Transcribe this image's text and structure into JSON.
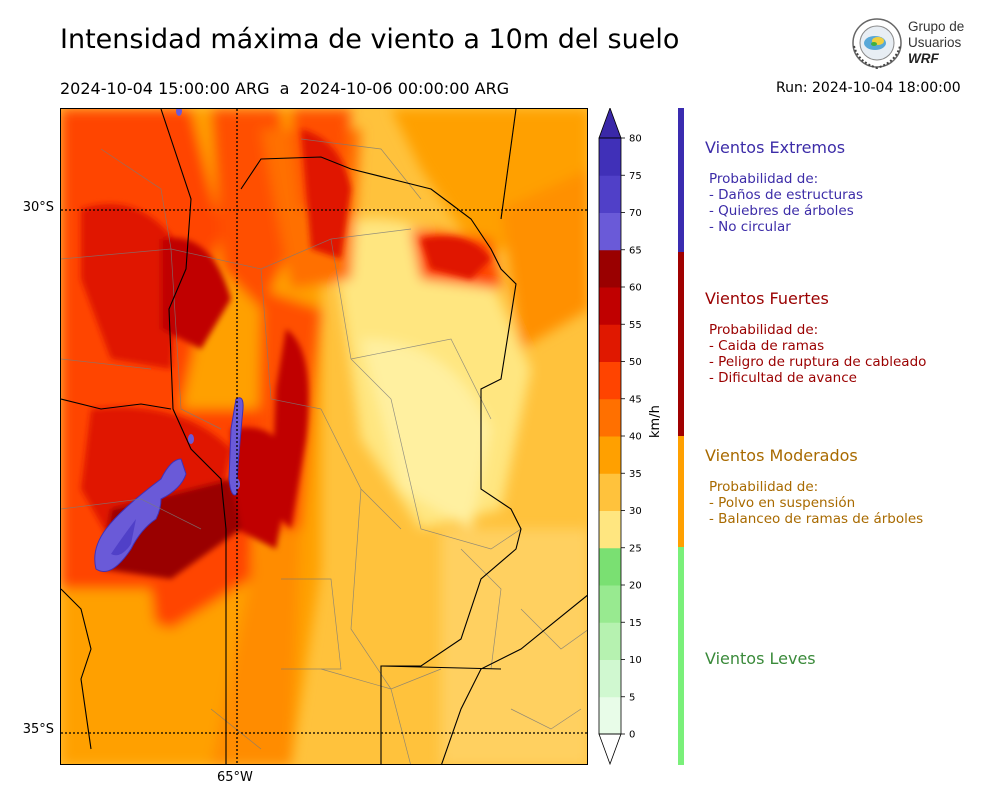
{
  "header": {
    "title": "Intensidad máxima de viento a 10m del suelo",
    "period": "2024-10-04 15:00:00 ARG  a  2024-10-06 00:00:00 ARG",
    "run": "Run: 2024-10-04 18:00:00"
  },
  "logo": {
    "line1": "Grupo de",
    "line2": "Usuarios",
    "line3": "WRF",
    "icon": "globe-emblem-icon"
  },
  "map": {
    "lat_labels": [
      "30°S",
      "35°S"
    ],
    "lon_labels": [
      "65°W"
    ],
    "gridlines": "dotted"
  },
  "colorbar": {
    "units": "km/h",
    "ticks": [
      "0",
      "5",
      "10",
      "15",
      "20",
      "25",
      "30",
      "35",
      "40",
      "45",
      "50",
      "55",
      "60",
      "65",
      "70",
      "75",
      "80"
    ],
    "colors": [
      "#e8fce8",
      "#d0f8d0",
      "#b6f2b0",
      "#98ea90",
      "#7ae072",
      "#ffe680",
      "#ffc23c",
      "#ffa000",
      "#ff7000",
      "#ff4400",
      "#e01800",
      "#c00000",
      "#9a0000",
      "#6a5ad8",
      "#5040c8",
      "#4030b8"
    ],
    "extend": "both"
  },
  "legend": [
    {
      "heading": "Vientos Extremos",
      "color": "#3c2ca8",
      "lines": [
        "Probabilidad de:",
        "- Daños de estructuras",
        "- Quiebres de árboles",
        "- No circular"
      ]
    },
    {
      "heading": "Vientos Fuertes",
      "color": "#9a0000",
      "lines": [
        "Probabilidad de:",
        "- Caida de ramas",
        "- Peligro de ruptura de cableado",
        "- Dificultad de avance"
      ]
    },
    {
      "heading": "Vientos Moderados",
      "color": "#a86a00",
      "lines": [
        "Probabilidad de:",
        "- Polvo en suspensión",
        "- Balanceo de ramas de árboles"
      ]
    },
    {
      "heading": "Vientos Leves",
      "color": "#3a8a3a",
      "lines": []
    }
  ],
  "bands": {
    "extreme": "#3a2cb0",
    "strong": "#a00000",
    "moderate": "#ffa000",
    "light": "#7af07a"
  }
}
